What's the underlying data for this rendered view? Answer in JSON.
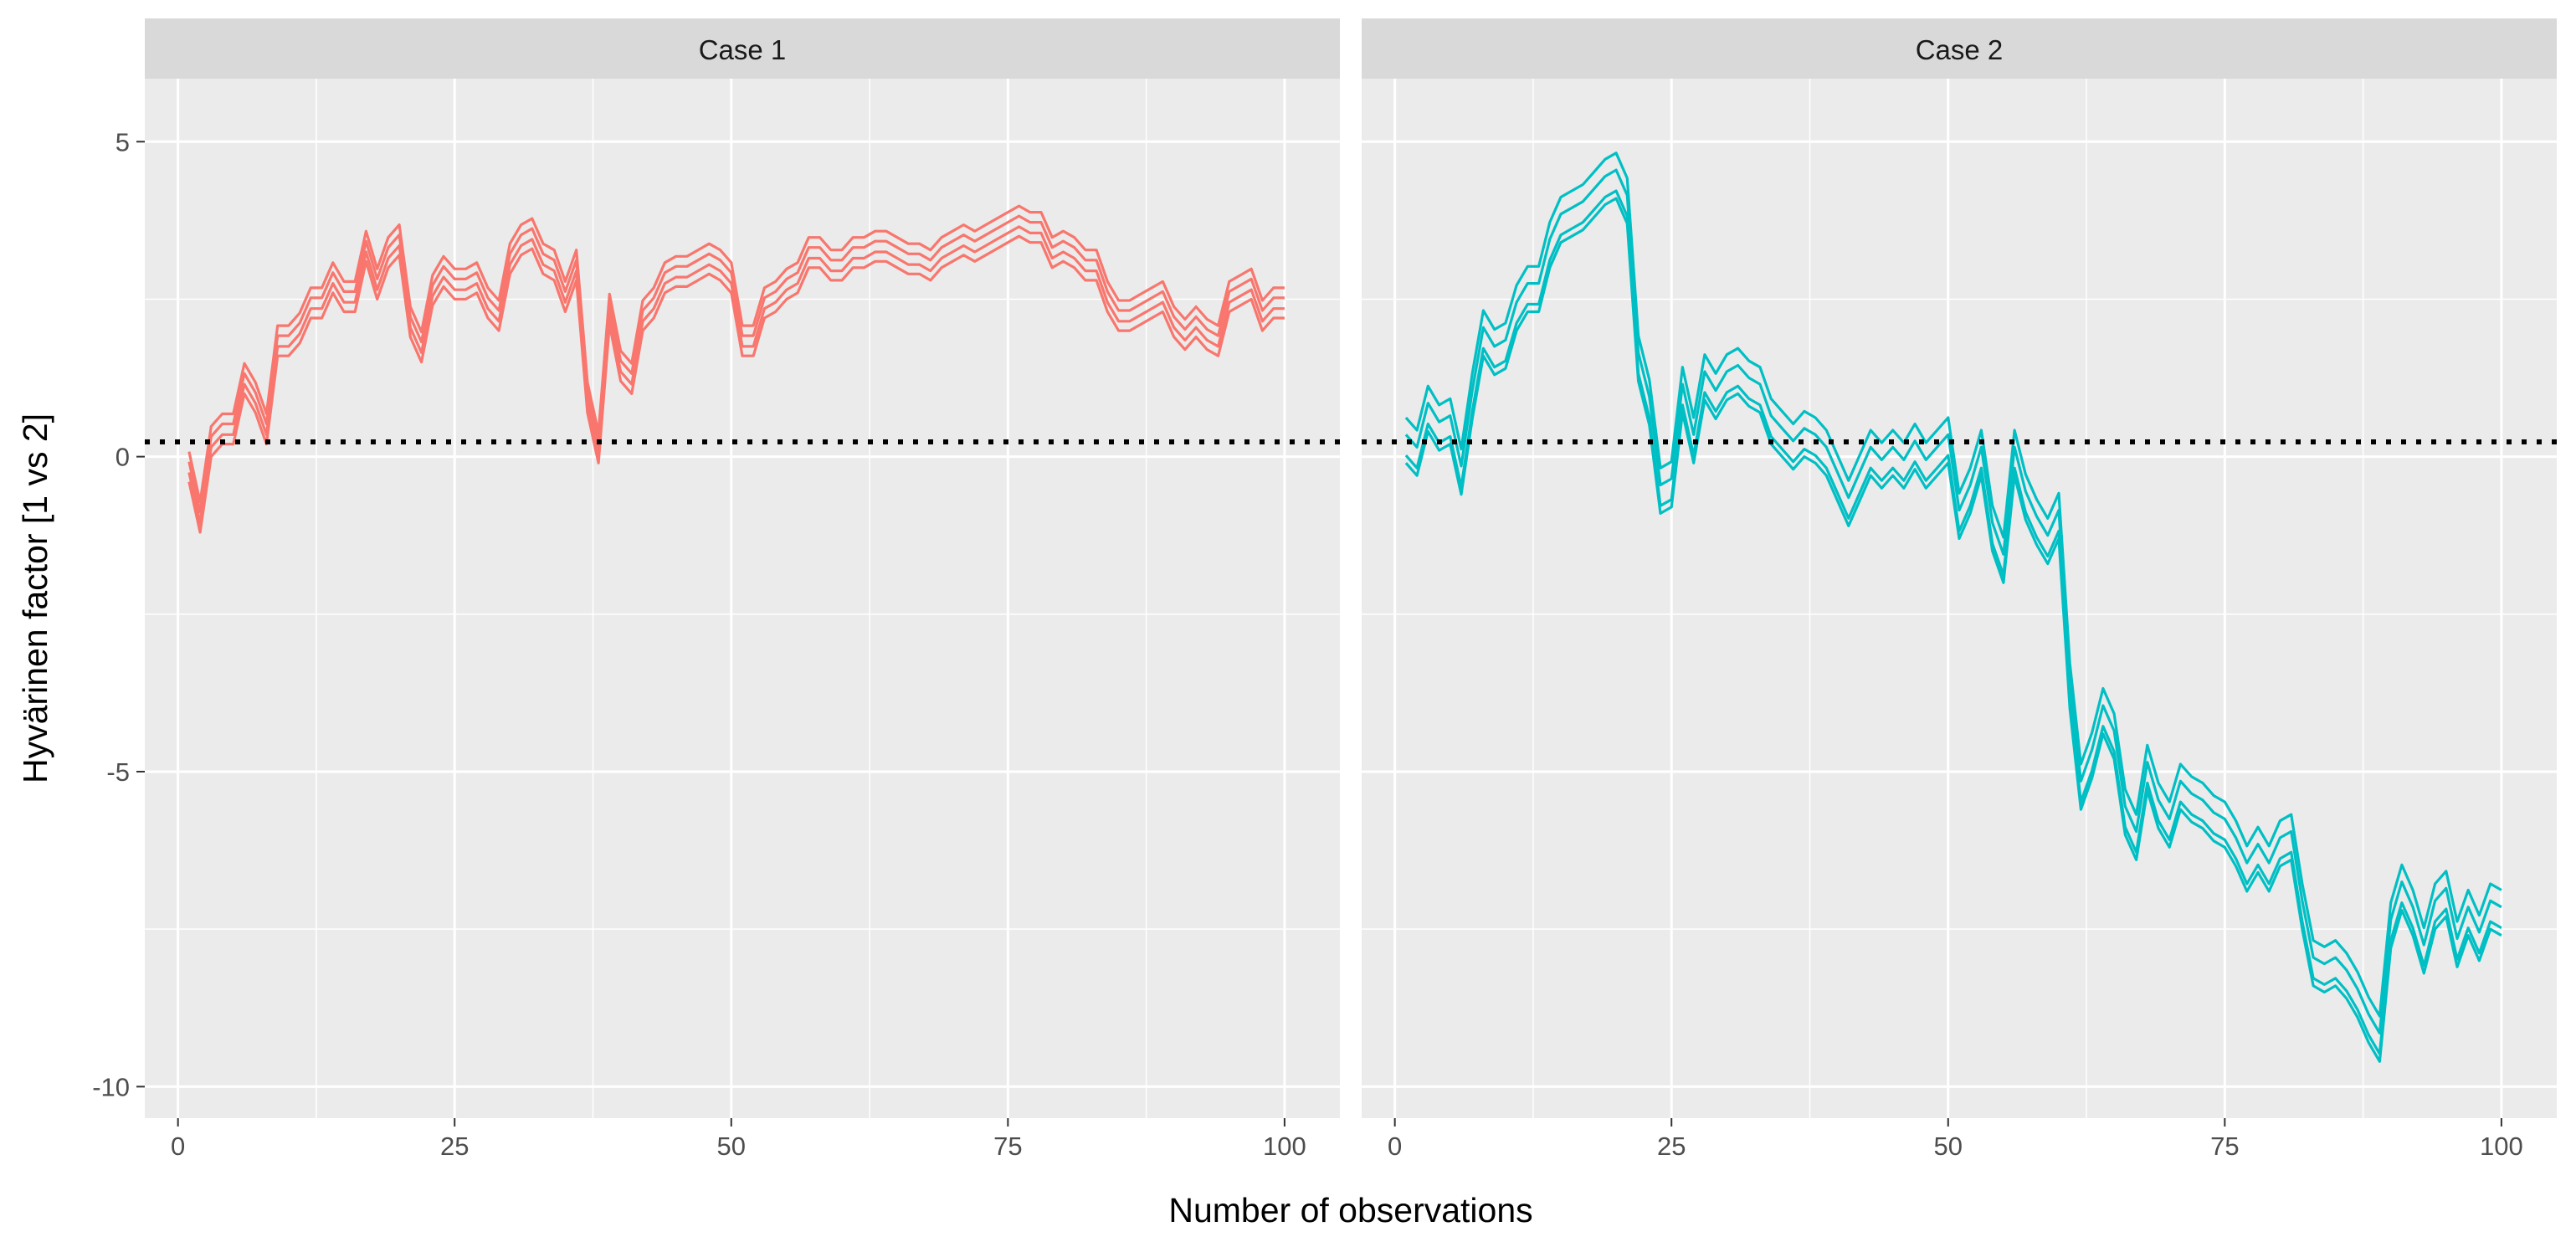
{
  "chart_data": {
    "type": "line",
    "xlabel": "Number of observations",
    "ylabel": "Hyvärinen factor  [1 vs 2]",
    "xlim": [
      -3,
      105
    ],
    "ylim": [
      -10.5,
      6.0
    ],
    "x_ticks": [
      0,
      25,
      50,
      75,
      100
    ],
    "x_tick_labels": [
      "0",
      "25",
      "50",
      "75",
      "100"
    ],
    "y_ticks": [
      5,
      0,
      -5,
      -10
    ],
    "y_tick_labels": [
      "5",
      "0",
      "-5",
      "-10"
    ],
    "reference_line": {
      "y": 0,
      "style": "dotted",
      "color": "#000000"
    },
    "grid": true,
    "legend": "none",
    "panel_background": "#ebebeb",
    "strip_background": "#d9d9d9",
    "panels": [
      {
        "strip": "Case  1",
        "color": "#f8766d",
        "base": {
          "x": [
            1,
            2,
            3,
            4,
            5,
            6,
            7,
            8,
            9,
            10,
            11,
            12,
            13,
            14,
            15,
            16,
            17,
            18,
            19,
            20,
            21,
            22,
            23,
            24,
            25,
            26,
            27,
            28,
            29,
            30,
            31,
            32,
            33,
            34,
            35,
            36,
            37,
            38,
            39,
            40,
            41,
            42,
            43,
            44,
            45,
            46,
            47,
            48,
            49,
            50,
            51,
            52,
            53,
            54,
            55,
            56,
            57,
            58,
            59,
            60,
            61,
            62,
            63,
            64,
            65,
            66,
            67,
            68,
            69,
            70,
            71,
            72,
            73,
            74,
            75,
            76,
            77,
            78,
            79,
            80,
            81,
            82,
            83,
            84,
            85,
            86,
            87,
            88,
            89,
            90,
            91,
            92,
            93,
            94,
            95,
            96,
            97,
            98,
            99,
            100
          ],
          "y": [
            -0.4,
            -1.2,
            0.0,
            0.2,
            0.2,
            1.0,
            0.7,
            0.2,
            1.6,
            1.6,
            1.8,
            2.2,
            2.2,
            2.6,
            2.3,
            2.3,
            3.1,
            2.5,
            3.0,
            3.2,
            1.9,
            1.5,
            2.4,
            2.7,
            2.5,
            2.5,
            2.6,
            2.2,
            2.0,
            2.9,
            3.2,
            3.3,
            2.9,
            2.8,
            2.3,
            2.8,
            0.7,
            -0.1,
            2.1,
            1.2,
            1.0,
            2.0,
            2.2,
            2.6,
            2.7,
            2.7,
            2.8,
            2.9,
            2.8,
            2.6,
            1.6,
            1.6,
            2.2,
            2.3,
            2.5,
            2.6,
            3.0,
            3.0,
            2.8,
            2.8,
            3.0,
            3.0,
            3.1,
            3.1,
            3.0,
            2.9,
            2.9,
            2.8,
            3.0,
            3.1,
            3.2,
            3.1,
            3.2,
            3.3,
            3.4,
            3.5,
            3.4,
            3.4,
            3.0,
            3.1,
            3.0,
            2.8,
            2.8,
            2.3,
            2.0,
            2.0,
            2.1,
            2.2,
            2.3,
            1.9,
            1.7,
            1.9,
            1.7,
            1.6,
            2.3,
            2.4,
            2.5,
            2.0,
            2.2,
            2.2
          ]
        },
        "series": [
          {
            "offset": 0.0
          },
          {
            "offset": 0.15
          },
          {
            "offset": 0.32
          },
          {
            "offset": 0.48
          }
        ]
      },
      {
        "strip": "Case  2",
        "color": "#00bfc4",
        "base": {
          "x": [
            1,
            2,
            3,
            4,
            5,
            6,
            7,
            8,
            9,
            10,
            11,
            12,
            13,
            14,
            15,
            16,
            17,
            18,
            19,
            20,
            21,
            22,
            23,
            24,
            25,
            26,
            27,
            28,
            29,
            30,
            31,
            32,
            33,
            34,
            35,
            36,
            37,
            38,
            39,
            40,
            41,
            42,
            43,
            44,
            45,
            46,
            47,
            48,
            49,
            50,
            51,
            52,
            53,
            54,
            55,
            56,
            57,
            58,
            59,
            60,
            61,
            62,
            63,
            64,
            65,
            66,
            67,
            68,
            69,
            70,
            71,
            72,
            73,
            74,
            75,
            76,
            77,
            78,
            79,
            80,
            81,
            82,
            83,
            84,
            85,
            86,
            87,
            88,
            89,
            90,
            91,
            92,
            93,
            94,
            95,
            96,
            97,
            98,
            99,
            100
          ],
          "y": [
            -0.1,
            -0.3,
            0.4,
            0.1,
            0.2,
            -0.6,
            0.6,
            1.6,
            1.3,
            1.4,
            2.0,
            2.3,
            2.3,
            3.0,
            3.4,
            3.5,
            3.6,
            3.8,
            4.0,
            4.1,
            3.7,
            1.2,
            0.5,
            -0.9,
            -0.8,
            0.7,
            -0.1,
            0.9,
            0.6,
            0.9,
            1.0,
            0.8,
            0.7,
            0.2,
            0.0,
            -0.2,
            0.0,
            -0.1,
            -0.3,
            -0.7,
            -1.1,
            -0.7,
            -0.3,
            -0.5,
            -0.3,
            -0.5,
            -0.2,
            -0.5,
            -0.3,
            -0.1,
            -1.3,
            -0.9,
            -0.3,
            -1.5,
            -2.0,
            -0.3,
            -1.0,
            -1.4,
            -1.7,
            -1.3,
            -4.0,
            -5.6,
            -5.1,
            -4.4,
            -4.8,
            -6.0,
            -6.4,
            -5.3,
            -5.9,
            -6.2,
            -5.6,
            -5.8,
            -5.9,
            -6.1,
            -6.2,
            -6.5,
            -6.9,
            -6.6,
            -6.9,
            -6.5,
            -6.4,
            -7.5,
            -8.4,
            -8.5,
            -8.4,
            -8.6,
            -8.9,
            -9.3,
            -9.6,
            -7.8,
            -7.2,
            -7.6,
            -8.2,
            -7.5,
            -7.3,
            -8.1,
            -7.6,
            -8.0,
            -7.5,
            -7.6
          ]
        },
        "series": [
          {
            "offset": 0.0
          },
          {
            "offset": 0.12
          },
          {
            "offset": 0.45
          },
          {
            "offset": 0.72
          }
        ]
      }
    ]
  }
}
